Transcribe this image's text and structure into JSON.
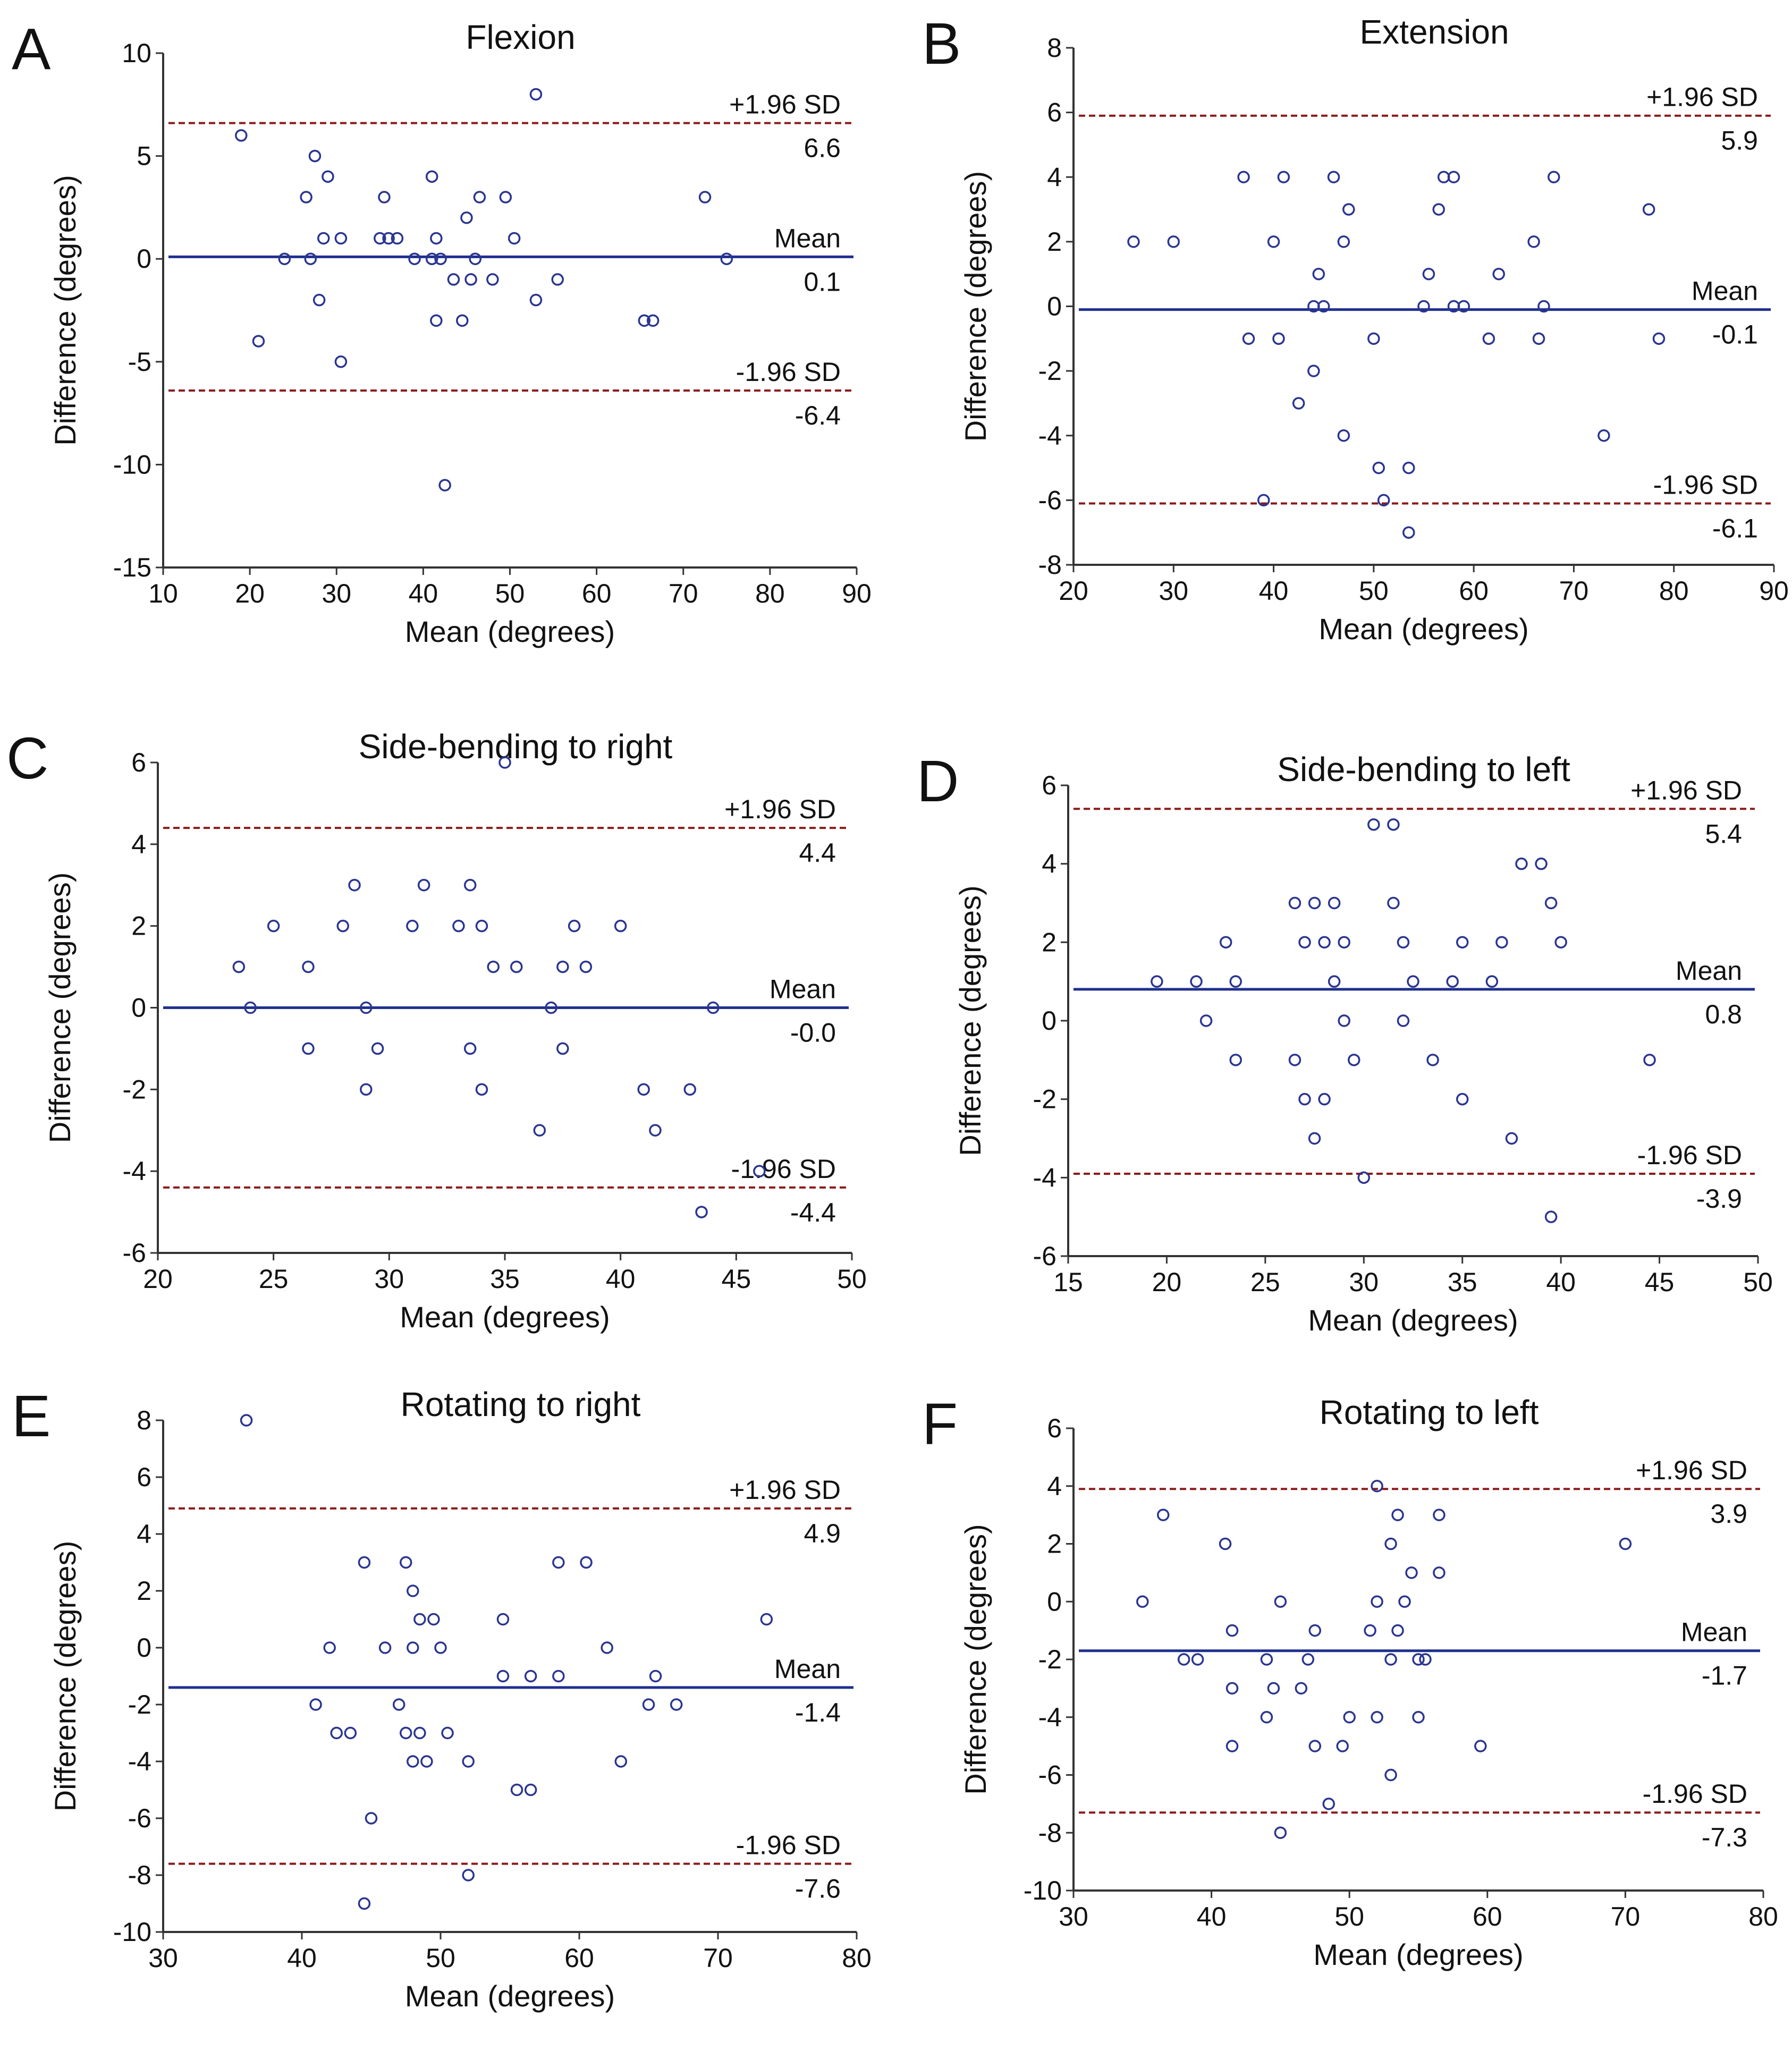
{
  "chart_data": [
    {
      "type": "scatter",
      "panel": "A",
      "title": "Flexion",
      "xlabel": "Mean (degrees)",
      "ylabel": "Difference (degrees)",
      "xlim": [
        10,
        90
      ],
      "ylim": [
        -15,
        10
      ],
      "xticks": [
        10,
        20,
        30,
        40,
        50,
        60,
        70,
        80,
        90
      ],
      "yticks": [
        -15,
        -10,
        -5,
        0,
        5,
        10
      ],
      "lines": [
        {
          "role": "upper",
          "label": "+1.96 SD",
          "value": 6.6,
          "value_text": "6.6"
        },
        {
          "role": "mean",
          "label": "Mean",
          "value": 0.1,
          "value_text": "0.1"
        },
        {
          "role": "lower",
          "label": "-1.96 SD",
          "value": -6.4,
          "value_text": "-6.4"
        }
      ],
      "points": [
        [
          19,
          6
        ],
        [
          21,
          -4
        ],
        [
          24,
          0
        ],
        [
          26.5,
          3
        ],
        [
          27,
          0
        ],
        [
          27.5,
          5
        ],
        [
          28,
          -2
        ],
        [
          28.5,
          1
        ],
        [
          29,
          4
        ],
        [
          30.5,
          -5
        ],
        [
          30.5,
          1
        ],
        [
          35,
          1
        ],
        [
          35.5,
          3
        ],
        [
          36,
          1
        ],
        [
          37,
          1
        ],
        [
          39,
          0
        ],
        [
          41,
          4
        ],
        [
          41,
          0
        ],
        [
          41.5,
          1
        ],
        [
          41.5,
          -3
        ],
        [
          42,
          0
        ],
        [
          42.5,
          -11
        ],
        [
          43.5,
          -1
        ],
        [
          44.5,
          -3
        ],
        [
          45,
          2
        ],
        [
          45.5,
          -1
        ],
        [
          46,
          0
        ],
        [
          46.5,
          3
        ],
        [
          48,
          -1
        ],
        [
          49.5,
          3
        ],
        [
          50.5,
          1
        ],
        [
          53,
          8
        ],
        [
          53,
          -2
        ],
        [
          55.5,
          -1
        ],
        [
          65.5,
          -3
        ],
        [
          66.5,
          -3
        ],
        [
          72.5,
          3
        ],
        [
          75,
          0
        ]
      ]
    },
    {
      "type": "scatter",
      "panel": "B",
      "title": "Extension",
      "xlabel": "Mean (degrees)",
      "ylabel": "Difference (degrees)",
      "xlim": [
        20,
        90
      ],
      "ylim": [
        -8,
        8
      ],
      "xticks": [
        20,
        30,
        40,
        50,
        60,
        70,
        80,
        90
      ],
      "yticks": [
        -8,
        -6,
        -4,
        -2,
        0,
        2,
        4,
        6,
        8
      ],
      "lines": [
        {
          "role": "upper",
          "label": "+1.96 SD",
          "value": 5.9,
          "value_text": "5.9"
        },
        {
          "role": "mean",
          "label": "Mean",
          "value": -0.1,
          "value_text": "-0.1"
        },
        {
          "role": "lower",
          "label": "-1.96 SD",
          "value": -6.1,
          "value_text": "-6.1"
        }
      ],
      "points": [
        [
          26,
          2
        ],
        [
          30,
          2
        ],
        [
          37,
          4
        ],
        [
          37.5,
          -1
        ],
        [
          39,
          -6
        ],
        [
          40,
          2
        ],
        [
          40.5,
          -1
        ],
        [
          41,
          4
        ],
        [
          42.5,
          -3
        ],
        [
          44,
          -2
        ],
        [
          44,
          0
        ],
        [
          44.5,
          1
        ],
        [
          45,
          0
        ],
        [
          46,
          4
        ],
        [
          47,
          -4
        ],
        [
          47,
          2
        ],
        [
          47.5,
          3
        ],
        [
          50,
          -1
        ],
        [
          50.5,
          -5
        ],
        [
          51,
          -6
        ],
        [
          53.5,
          -7
        ],
        [
          53.5,
          -5
        ],
        [
          55,
          0
        ],
        [
          55.5,
          1
        ],
        [
          56.5,
          3
        ],
        [
          57,
          4
        ],
        [
          58,
          4
        ],
        [
          58,
          0
        ],
        [
          59,
          0
        ],
        [
          61.5,
          -1
        ],
        [
          62.5,
          1
        ],
        [
          66,
          2
        ],
        [
          66.5,
          -1
        ],
        [
          67,
          0
        ],
        [
          68,
          4
        ],
        [
          73,
          -4
        ],
        [
          77.5,
          3
        ],
        [
          78.5,
          -1
        ]
      ]
    },
    {
      "type": "scatter",
      "panel": "C",
      "title": "Side-bending to right",
      "xlabel": "Mean (degrees)",
      "ylabel": "Difference (degrees)",
      "xlim": [
        20,
        50
      ],
      "ylim": [
        -6,
        6
      ],
      "xticks": [
        20,
        25,
        30,
        35,
        40,
        45,
        50
      ],
      "yticks": [
        -6,
        -4,
        -2,
        0,
        2,
        4,
        6
      ],
      "lines": [
        {
          "role": "upper",
          "label": "+1.96 SD",
          "value": 4.4,
          "value_text": "4.4"
        },
        {
          "role": "mean",
          "label": "Mean",
          "value": -0.0,
          "value_text": "-0.0"
        },
        {
          "role": "lower",
          "label": "-1.96 SD",
          "value": -4.4,
          "value_text": "-4.4"
        }
      ],
      "points": [
        [
          23.5,
          1
        ],
        [
          24,
          0
        ],
        [
          25,
          2
        ],
        [
          26.5,
          1
        ],
        [
          26.5,
          -1
        ],
        [
          28,
          2
        ],
        [
          28.5,
          3
        ],
        [
          29,
          0
        ],
        [
          29,
          -2
        ],
        [
          29.5,
          -1
        ],
        [
          31,
          2
        ],
        [
          31.5,
          3
        ],
        [
          33,
          2
        ],
        [
          33.5,
          3
        ],
        [
          33.5,
          -1
        ],
        [
          34,
          -2
        ],
        [
          34,
          2
        ],
        [
          34.5,
          1
        ],
        [
          35,
          6
        ],
        [
          35.5,
          1
        ],
        [
          36.5,
          -3
        ],
        [
          37,
          0
        ],
        [
          37.5,
          1
        ],
        [
          37.5,
          -1
        ],
        [
          38,
          2
        ],
        [
          38.5,
          1
        ],
        [
          40,
          2
        ],
        [
          41,
          -2
        ],
        [
          41.5,
          -3
        ],
        [
          43,
          -2
        ],
        [
          43.5,
          -5
        ],
        [
          44,
          0
        ],
        [
          46,
          -4
        ]
      ]
    },
    {
      "type": "scatter",
      "panel": "D",
      "title": "Side-bending to left",
      "xlabel": "Mean (degrees)",
      "ylabel": "Difference (degrees)",
      "xlim": [
        15,
        50
      ],
      "ylim": [
        -6,
        6
      ],
      "xticks": [
        15,
        20,
        25,
        30,
        35,
        40,
        45,
        50
      ],
      "yticks": [
        -6,
        -4,
        -2,
        0,
        2,
        4,
        6
      ],
      "lines": [
        {
          "role": "upper",
          "label": "+1.96 SD",
          "value": 5.4,
          "value_text": "5.4"
        },
        {
          "role": "mean",
          "label": "Mean",
          "value": 0.8,
          "value_text": "0.8"
        },
        {
          "role": "lower",
          "label": "-1.96 SD",
          "value": -3.9,
          "value_text": "-3.9"
        }
      ],
      "points": [
        [
          19.5,
          1
        ],
        [
          21.5,
          1
        ],
        [
          22,
          0
        ],
        [
          23,
          2
        ],
        [
          23.5,
          1
        ],
        [
          23.5,
          -1
        ],
        [
          26.5,
          3
        ],
        [
          26.5,
          -1
        ],
        [
          27,
          2
        ],
        [
          27,
          -2
        ],
        [
          27.5,
          3
        ],
        [
          27.5,
          -3
        ],
        [
          28,
          2
        ],
        [
          28,
          -2
        ],
        [
          28.5,
          3
        ],
        [
          28.5,
          1
        ],
        [
          29,
          2
        ],
        [
          29,
          0
        ],
        [
          29.5,
          -1
        ],
        [
          30,
          -4
        ],
        [
          30.5,
          5
        ],
        [
          31.5,
          5
        ],
        [
          31.5,
          3
        ],
        [
          32,
          2
        ],
        [
          32,
          0
        ],
        [
          32.5,
          1
        ],
        [
          33.5,
          -1
        ],
        [
          34.5,
          1
        ],
        [
          35,
          2
        ],
        [
          35,
          -2
        ],
        [
          36.5,
          1
        ],
        [
          37,
          2
        ],
        [
          37.5,
          -3
        ],
        [
          38,
          4
        ],
        [
          39,
          4
        ],
        [
          39.5,
          3
        ],
        [
          39.5,
          -5
        ],
        [
          40,
          2
        ],
        [
          44.5,
          -1
        ]
      ]
    },
    {
      "type": "scatter",
      "panel": "E",
      "title": "Rotating to right",
      "xlabel": "Mean (degrees)",
      "ylabel": "Difference (degrees)",
      "xlim": [
        30,
        80
      ],
      "ylim": [
        -10,
        8
      ],
      "xticks": [
        30,
        40,
        50,
        60,
        70,
        80
      ],
      "yticks": [
        -10,
        -8,
        -6,
        -4,
        -2,
        0,
        2,
        4,
        6,
        8
      ],
      "lines": [
        {
          "role": "upper",
          "label": "+1.96 SD",
          "value": 4.9,
          "value_text": "4.9"
        },
        {
          "role": "mean",
          "label": "Mean",
          "value": -1.4,
          "value_text": "-1.4"
        },
        {
          "role": "lower",
          "label": "-1.96 SD",
          "value": -7.6,
          "value_text": "-7.6"
        }
      ],
      "points": [
        [
          36,
          8
        ],
        [
          41,
          -2
        ],
        [
          42,
          0
        ],
        [
          42.5,
          -3
        ],
        [
          43.5,
          -3
        ],
        [
          44.5,
          3
        ],
        [
          44.5,
          -9
        ],
        [
          45,
          -6
        ],
        [
          46,
          0
        ],
        [
          47,
          -2
        ],
        [
          47.5,
          3
        ],
        [
          47.5,
          -3
        ],
        [
          48,
          2
        ],
        [
          48,
          0
        ],
        [
          48,
          -4
        ],
        [
          48.5,
          1
        ],
        [
          48.5,
          -3
        ],
        [
          49,
          -4
        ],
        [
          49.5,
          1
        ],
        [
          50,
          0
        ],
        [
          50.5,
          -3
        ],
        [
          52,
          -4
        ],
        [
          52,
          -8
        ],
        [
          54.5,
          1
        ],
        [
          54.5,
          -1
        ],
        [
          55.5,
          -5
        ],
        [
          56.5,
          -1
        ],
        [
          56.5,
          -5
        ],
        [
          58.5,
          3
        ],
        [
          58.5,
          -1
        ],
        [
          60.5,
          3
        ],
        [
          62,
          0
        ],
        [
          63,
          -4
        ],
        [
          65,
          -2
        ],
        [
          65.5,
          -1
        ],
        [
          67,
          -2
        ],
        [
          73.5,
          1
        ]
      ]
    },
    {
      "type": "scatter",
      "panel": "F",
      "title": "Rotating to left",
      "xlabel": "Mean (degrees)",
      "ylabel": "Difference (degrees)",
      "xlim": [
        30,
        80
      ],
      "ylim": [
        -10,
        6
      ],
      "xticks": [
        30,
        40,
        50,
        60,
        70,
        80
      ],
      "yticks": [
        -10,
        -8,
        -6,
        -4,
        -2,
        0,
        2,
        4,
        6
      ],
      "lines": [
        {
          "role": "upper",
          "label": "+1.96 SD",
          "value": 3.9,
          "value_text": "3.9"
        },
        {
          "role": "mean",
          "label": "Mean",
          "value": -1.7,
          "value_text": "-1.7"
        },
        {
          "role": "lower",
          "label": "-1.96 SD",
          "value": -7.3,
          "value_text": "-7.3"
        }
      ],
      "points": [
        [
          35,
          0
        ],
        [
          36.5,
          3
        ],
        [
          38,
          -2
        ],
        [
          39,
          -2
        ],
        [
          41,
          2
        ],
        [
          41.5,
          -1
        ],
        [
          41.5,
          -3
        ],
        [
          41.5,
          -5
        ],
        [
          44,
          -2
        ],
        [
          44,
          -4
        ],
        [
          44.5,
          -3
        ],
        [
          45,
          0
        ],
        [
          45,
          -8
        ],
        [
          46.5,
          -3
        ],
        [
          47,
          -2
        ],
        [
          47.5,
          -1
        ],
        [
          47.5,
          -5
        ],
        [
          48.5,
          -7
        ],
        [
          49.5,
          -5
        ],
        [
          50,
          -4
        ],
        [
          51.5,
          -1
        ],
        [
          52,
          4
        ],
        [
          52,
          0
        ],
        [
          52,
          -4
        ],
        [
          53,
          2
        ],
        [
          53,
          -2
        ],
        [
          53,
          -6
        ],
        [
          53.5,
          -1
        ],
        [
          53.5,
          3
        ],
        [
          54,
          0
        ],
        [
          54.5,
          1
        ],
        [
          55,
          -2
        ],
        [
          55,
          -4
        ],
        [
          55.5,
          -2
        ],
        [
          56.5,
          3
        ],
        [
          56.5,
          1
        ],
        [
          59.5,
          -5
        ],
        [
          70,
          2
        ]
      ]
    }
  ]
}
